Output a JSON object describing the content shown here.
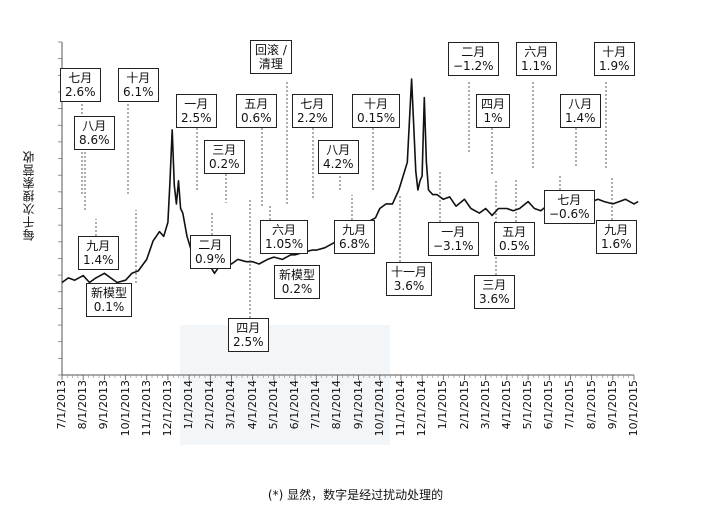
{
  "chart_data": {
    "type": "line",
    "title": "",
    "ylabel": "每千次搜索营收",
    "xlabel": "",
    "footnote": "(*) 显然，数字是经过扰动处理的",
    "x_ticks": [
      "7/1/2013",
      "8/1/2013",
      "9/1/2013",
      "10/1/2013",
      "11/1/2013",
      "12/1/2013",
      "1/1/2014",
      "2/1/2014",
      "3/1/2014",
      "4/1/2014",
      "5/1/2014",
      "6/1/2014",
      "7/1/2014",
      "8/1/2014",
      "9/1/2014",
      "10/1/2014",
      "11/1/2014",
      "12/1/2014",
      "1/1/2015",
      "2/1/2015",
      "3/1/2015",
      "4/1/2015",
      "5/1/2015",
      "6/1/2015",
      "7/1/2015",
      "8/1/2015",
      "9/1/2015",
      "10/1/2015"
    ],
    "series": [
      {
        "x": [
          0,
          0.3,
          0.6,
          1.0,
          1.3,
          1.6,
          2.0,
          2.3,
          2.6,
          3.0,
          3.3,
          3.6,
          4.0,
          4.3,
          4.6,
          4.8,
          5.0,
          5.1,
          5.2,
          5.3,
          5.4,
          5.5,
          5.6,
          5.7,
          5.9,
          6.1,
          6.3,
          6.6,
          7.0,
          7.2,
          7.5,
          7.8,
          8.0,
          8.3,
          8.7,
          9.0,
          9.3,
          9.7,
          10.0,
          10.4,
          10.8,
          11.0,
          11.4,
          11.8,
          12.0,
          12.4,
          12.8,
          13.0,
          13.4,
          13.8,
          14.0,
          14.4,
          14.8,
          15.0,
          15.3,
          15.6,
          15.9,
          16.1,
          16.3,
          16.5,
          16.7,
          16.8,
          16.9,
          17.0,
          17.1,
          17.2,
          17.3,
          17.5,
          17.7,
          18.0,
          18.3,
          18.6,
          19.0,
          19.3,
          19.7,
          20.0,
          20.3,
          20.6,
          21.0,
          21.3,
          21.6,
          22.0,
          22.3,
          22.6,
          23.0,
          23.3,
          23.6,
          24.0,
          24.3,
          24.6,
          25.0,
          25.3,
          25.6,
          26.0,
          26.3,
          26.6,
          27.0,
          27.2
        ],
        "values": [
          2.0,
          2.1,
          2.05,
          2.15,
          2.0,
          2.1,
          2.2,
          2.1,
          2.0,
          2.05,
          2.2,
          2.25,
          2.5,
          2.9,
          3.1,
          3.0,
          3.3,
          4.2,
          5.3,
          4.1,
          3.7,
          4.2,
          3.6,
          3.5,
          3.0,
          2.7,
          2.6,
          2.5,
          2.35,
          2.2,
          2.4,
          2.45,
          2.4,
          2.5,
          2.45,
          2.45,
          2.4,
          2.5,
          2.55,
          2.5,
          2.6,
          2.6,
          2.65,
          2.7,
          2.7,
          2.75,
          2.85,
          2.9,
          3.0,
          3.0,
          3.1,
          3.3,
          3.4,
          3.6,
          3.7,
          3.7,
          4.0,
          4.3,
          4.6,
          6.4,
          4.4,
          4.0,
          4.2,
          4.3,
          6.0,
          4.6,
          4.0,
          3.9,
          3.9,
          3.8,
          3.85,
          3.65,
          3.8,
          3.6,
          3.5,
          3.6,
          3.45,
          3.6,
          3.6,
          3.55,
          3.6,
          3.75,
          3.6,
          3.55,
          3.7,
          3.75,
          3.85,
          3.9,
          3.8,
          3.85,
          3.75,
          3.8,
          3.75,
          3.7,
          3.75,
          3.8,
          3.7,
          3.75
        ]
      }
    ],
    "annotations": [
      {
        "lines": [
          "七月",
          "2.6%"
        ]
      },
      {
        "lines": [
          "十月",
          "6.1%"
        ]
      },
      {
        "lines": [
          "八月",
          "8.6%"
        ]
      },
      {
        "lines": [
          "九月",
          "1.4%"
        ]
      },
      {
        "lines": [
          "新模型",
          "0.1%"
        ]
      },
      {
        "lines": [
          "一月",
          "2.5%"
        ]
      },
      {
        "lines": [
          "三月",
          "0.2%"
        ]
      },
      {
        "lines": [
          "二月",
          "0.9%"
        ]
      },
      {
        "lines": [
          "五月",
          "0.6%"
        ]
      },
      {
        "lines": [
          "回滚 /",
          "清理"
        ]
      },
      {
        "lines": [
          "七月",
          "2.2%"
        ]
      },
      {
        "lines": [
          "十月",
          "0.15%"
        ]
      },
      {
        "lines": [
          "八月",
          "4.2%"
        ]
      },
      {
        "lines": [
          "六月",
          "1.05%"
        ]
      },
      {
        "lines": [
          "新模型",
          "0.2%"
        ]
      },
      {
        "lines": [
          "九月",
          "6.8%"
        ]
      },
      {
        "lines": [
          "四月",
          "2.5%"
        ]
      },
      {
        "lines": [
          "十一月",
          "3.6%"
        ]
      },
      {
        "lines": [
          "二月",
          "−1.2%"
        ]
      },
      {
        "lines": [
          "四月",
          "1%"
        ]
      },
      {
        "lines": [
          "六月",
          "1.1%"
        ]
      },
      {
        "lines": [
          "十月",
          "1.9%"
        ]
      },
      {
        "lines": [
          "八月",
          "1.4%"
        ]
      },
      {
        "lines": [
          "七月",
          "−0.6%"
        ]
      },
      {
        "lines": [
          "一月",
          "−3.1%"
        ]
      },
      {
        "lines": [
          "五月",
          "0.5%"
        ]
      },
      {
        "lines": [
          "九月",
          "1.6%"
        ]
      },
      {
        "lines": [
          "三月",
          "3.6%"
        ]
      }
    ]
  }
}
